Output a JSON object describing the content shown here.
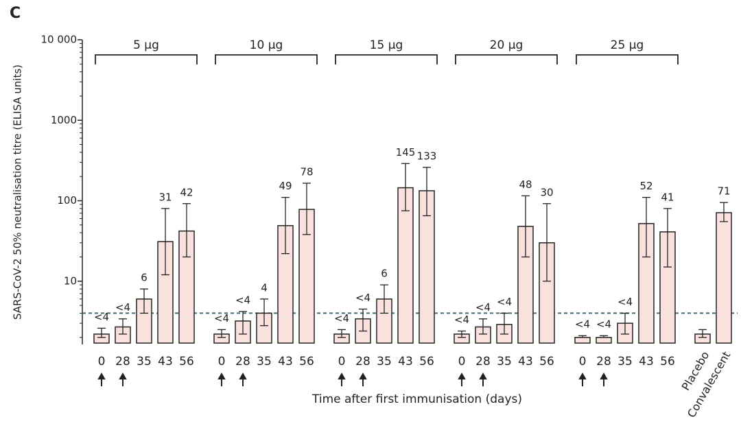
{
  "chart_data": {
    "type": "bar",
    "panel_label": "C",
    "y_label": "SARS-CoV-2 50% neutralisation titre (ELISA units)",
    "x_label": "Time after first immunisation (days)",
    "log_scale": true,
    "ylim": [
      1.7,
      10000
    ],
    "yticks": [
      {
        "value": 10000,
        "label": "10 000"
      },
      1000,
      100,
      10
    ],
    "threshold": 4,
    "bar_color": "#f9e1de",
    "threshold_color": "#3d6b78",
    "groups": [
      {
        "name": "5 µg",
        "categories": [
          "0",
          "28",
          "35",
          "43",
          "56"
        ],
        "values": [
          2.2,
          2.7,
          6,
          31,
          42
        ],
        "value_labels": [
          "<4",
          "<4",
          "6",
          "31",
          "42"
        ],
        "err_low": [
          2.0,
          2.2,
          4,
          12,
          20
        ],
        "err_high": [
          2.6,
          3.4,
          8,
          80,
          92
        ]
      },
      {
        "name": "10 µg",
        "categories": [
          "0",
          "28",
          "35",
          "43",
          "56"
        ],
        "values": [
          2.2,
          3.2,
          4,
          49,
          78
        ],
        "value_labels": [
          "<4",
          "<4",
          "4",
          "49",
          "78"
        ],
        "err_low": [
          2.0,
          2.2,
          2.8,
          22,
          38
        ],
        "err_high": [
          2.5,
          4.2,
          6,
          110,
          165
        ]
      },
      {
        "name": "15 µg",
        "categories": [
          "0",
          "28",
          "35",
          "43",
          "56"
        ],
        "values": [
          2.2,
          3.4,
          6,
          145,
          133
        ],
        "value_labels": [
          "<4",
          "<4",
          "6",
          "145",
          "133"
        ],
        "err_low": [
          2.0,
          2.4,
          4,
          75,
          65
        ],
        "err_high": [
          2.5,
          4.5,
          9,
          290,
          260
        ]
      },
      {
        "name": "20 µg",
        "categories": [
          "0",
          "28",
          "35",
          "43",
          "56"
        ],
        "values": [
          2.2,
          2.7,
          2.9,
          48,
          30
        ],
        "value_labels": [
          "<4",
          "<4",
          "<4",
          "48",
          "30"
        ],
        "err_low": [
          2.0,
          2.2,
          2.2,
          20,
          10
        ],
        "err_high": [
          2.4,
          3.4,
          4,
          115,
          92
        ]
      },
      {
        "name": "25 µg",
        "categories": [
          "0",
          "28",
          "35",
          "43",
          "56"
        ],
        "values": [
          2,
          2,
          3,
          52,
          41
        ],
        "value_labels": [
          "<4",
          "<4",
          "<4",
          "52",
          "41"
        ],
        "err_low": [
          2.0,
          2.0,
          2.2,
          20,
          15
        ],
        "err_high": [
          2.1,
          2.1,
          4,
          110,
          80
        ]
      },
      {
        "categories": [
          "Placebo",
          "Convalescent"
        ],
        "values": [
          2.2,
          71
        ],
        "value_labels": [
          null,
          "71"
        ],
        "err_low": [
          2.0,
          55
        ],
        "err_high": [
          2.5,
          95
        ]
      }
    ]
  }
}
